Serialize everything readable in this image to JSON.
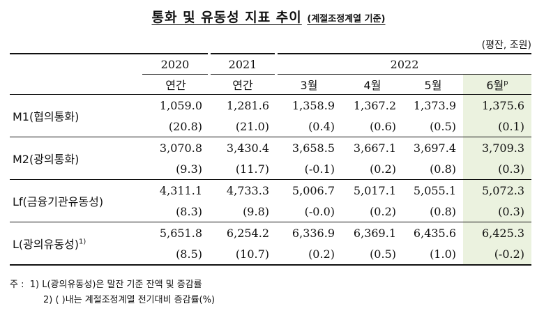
{
  "title": {
    "main": "통화 및 유동성 지표 추이",
    "sub": "(계절조정계열 기준)"
  },
  "unit": "(평잔, 조원)",
  "header": {
    "years": [
      "2020",
      "2021",
      "2022"
    ],
    "periods": [
      "연간",
      "연간",
      "3월",
      "4월",
      "5월",
      "6월"
    ],
    "preliminary_mark": "p"
  },
  "rows": [
    {
      "label": "M1(협의통화)",
      "sup": "",
      "values": [
        "1,059.0",
        "1,281.6",
        "1,358.9",
        "1,367.2",
        "1,373.9",
        "1,375.6"
      ],
      "changes": [
        "(20.8)",
        "(21.0)",
        "(0.4)",
        "(0.6)",
        "(0.5)",
        "(0.1)"
      ]
    },
    {
      "label": "M2(광의통화)",
      "sup": "",
      "values": [
        "3,070.8",
        "3,430.4",
        "3,658.5",
        "3,667.1",
        "3,697.4",
        "3,709.3"
      ],
      "changes": [
        "(9.3)",
        "(11.7)",
        "(-0.1)",
        "(0.2)",
        "(0.8)",
        "(0.3)"
      ]
    },
    {
      "label": "Lf(금융기관유동성)",
      "sup": "",
      "values": [
        "4,311.1",
        "4,733.3",
        "5,006.7",
        "5,017.1",
        "5,055.1",
        "5,072.3"
      ],
      "changes": [
        "(8.3)",
        "(9.8)",
        "(-0.0)",
        "(0.2)",
        "(0.8)",
        "(0.3)"
      ]
    },
    {
      "label": "L(광의유동성)",
      "sup": "1)",
      "values": [
        "5,651.8",
        "6,254.2",
        "6,336.9",
        "6,369.1",
        "6,435.6",
        "6,425.3"
      ],
      "changes": [
        "(8.5)",
        "(10.7)",
        "(0.2)",
        "(0.5)",
        "(1.0)",
        "(-0.2)"
      ]
    }
  ],
  "notes": {
    "prefix": "주 :",
    "note1": "1) L(광의유동성)은 말잔 기준 잔액 및 증감률",
    "note2": "2) (     )내는 계절조정계열 전기대비 증감률(%)"
  }
}
